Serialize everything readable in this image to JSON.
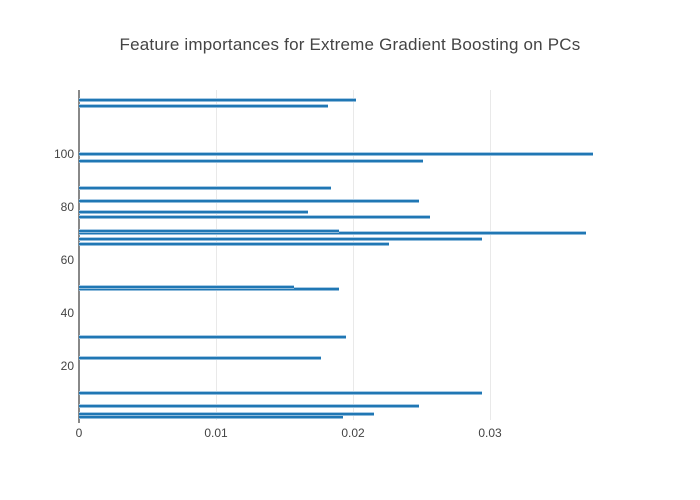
{
  "chart_data": {
    "type": "bar",
    "orientation": "horizontal",
    "title": "Feature importances for Extreme Gradient Boosting on PCs",
    "xlabel": "",
    "ylabel": "",
    "legend": "none",
    "grid": "vertical-only",
    "x_axis": {
      "tick_values": [
        0,
        0.01,
        0.02,
        0.03
      ],
      "tick_labels": [
        "0",
        "0.01",
        "0.02",
        "0.03"
      ],
      "range": [
        0,
        0.0424
      ]
    },
    "y_axis": {
      "tick_values": [
        20,
        40,
        60,
        80,
        100
      ],
      "tick_labels": [
        "20",
        "40",
        "60",
        "80",
        "100"
      ],
      "range": [
        -1.7,
        124
      ]
    },
    "points": [
      {
        "feature_index": 1,
        "importance": 0.0193
      },
      {
        "feature_index": 2,
        "importance": 0.0215
      },
      {
        "feature_index": 5,
        "importance": 0.0248
      },
      {
        "feature_index": 10,
        "importance": 0.0294
      },
      {
        "feature_index": 23,
        "importance": 0.0177
      },
      {
        "feature_index": 31,
        "importance": 0.0195
      },
      {
        "feature_index": 49,
        "importance": 0.019
      },
      {
        "feature_index": 50,
        "importance": 0.0157
      },
      {
        "feature_index": 66,
        "importance": 0.0226
      },
      {
        "feature_index": 68,
        "importance": 0.0294
      },
      {
        "feature_index": 70,
        "importance": 0.037
      },
      {
        "feature_index": 71,
        "importance": 0.019
      },
      {
        "feature_index": 76,
        "importance": 0.0256
      },
      {
        "feature_index": 78,
        "importance": 0.0167
      },
      {
        "feature_index": 82,
        "importance": 0.0248
      },
      {
        "feature_index": 87,
        "importance": 0.0184
      },
      {
        "feature_index": 97,
        "importance": 0.0251
      },
      {
        "feature_index": 100,
        "importance": 0.0375
      },
      {
        "feature_index": 118,
        "importance": 0.0182
      },
      {
        "feature_index": 120,
        "importance": 0.0202
      }
    ],
    "colors": {
      "bar": "#1f77b4",
      "bar_edge_light": "#a9cbe5",
      "axis_line": "#888888",
      "grid_line": "#e9e9e9",
      "text": "#444444"
    }
  }
}
